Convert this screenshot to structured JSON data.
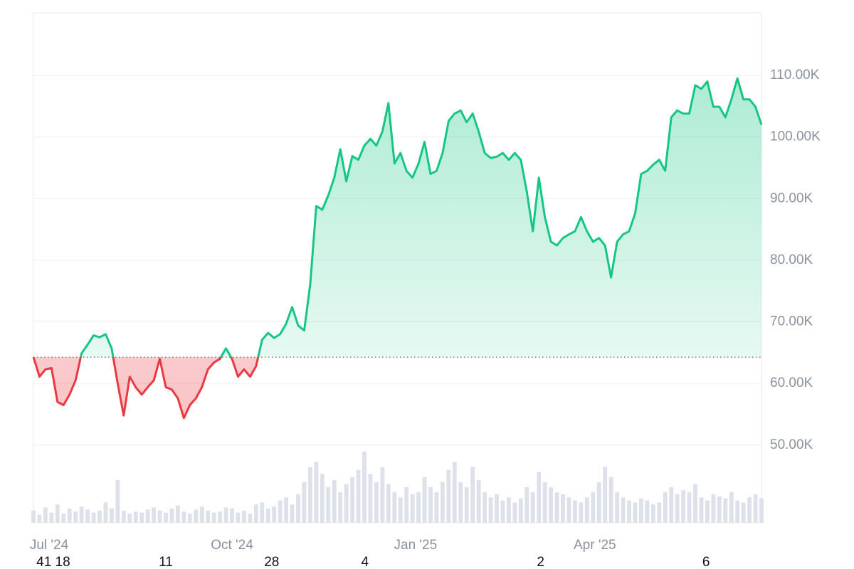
{
  "chart_data": {
    "type": "baseline-area",
    "values": [
      64300,
      61100,
      62300,
      62500,
      57000,
      56500,
      58200,
      60500,
      64900,
      66300,
      67800,
      67500,
      68000,
      65700,
      60000,
      54800,
      61100,
      59400,
      58200,
      59400,
      60500,
      64000,
      59400,
      59000,
      57600,
      54400,
      56500,
      57600,
      59400,
      62300,
      63400,
      64000,
      65700,
      64000,
      61100,
      62300,
      61100,
      62800,
      67100,
      68200,
      67400,
      68000,
      69700,
      72400,
      69400,
      68600,
      76100,
      88800,
      88200,
      90500,
      93400,
      98000,
      92800,
      96900,
      96300,
      98600,
      99700,
      98600,
      100900,
      105500,
      95700,
      97400,
      94500,
      93400,
      95700,
      99200,
      94000,
      94500,
      97400,
      102600,
      103800,
      104300,
      102400,
      103800,
      100900,
      97400,
      96600,
      96800,
      97400,
      96300,
      97400,
      96300,
      91100,
      84700,
      93400,
      87000,
      83000,
      82400,
      83600,
      84200,
      84700,
      87000,
      84700,
      83000,
      83600,
      82400,
      77200,
      83000,
      84200,
      84700,
      87600,
      94000,
      94500,
      95500,
      96300,
      94500,
      103200,
      104300,
      103800,
      103800,
      108400,
      107800,
      109000,
      104900,
      104900,
      103200,
      106100,
      109500,
      106100,
      106100,
      104900,
      102000
    ],
    "volume": [
      12,
      8,
      15,
      10,
      18,
      9,
      14,
      11,
      16,
      13,
      10,
      12,
      20,
      14,
      42,
      12,
      9,
      11,
      10,
      13,
      15,
      12,
      10,
      14,
      17,
      11,
      9,
      13,
      16,
      12,
      10,
      11,
      15,
      14,
      10,
      12,
      9,
      18,
      20,
      14,
      16,
      22,
      25,
      18,
      28,
      40,
      55,
      60,
      48,
      35,
      42,
      30,
      38,
      45,
      52,
      70,
      48,
      40,
      55,
      38,
      30,
      25,
      35,
      28,
      30,
      45,
      35,
      30,
      40,
      52,
      60,
      40,
      35,
      55,
      42,
      30,
      25,
      28,
      22,
      25,
      20,
      24,
      35,
      30,
      50,
      40,
      35,
      30,
      28,
      25,
      22,
      20,
      25,
      30,
      40,
      55,
      45,
      30,
      25,
      22,
      20,
      24,
      22,
      18,
      20,
      30,
      35,
      28,
      32,
      30,
      38,
      25,
      22,
      28,
      26,
      24,
      30,
      22,
      20,
      25,
      28,
      24
    ],
    "baseline": 64270,
    "color_above": "#16c784",
    "color_below": "#ea3943",
    "volume_color": "#dde2ea",
    "xlim": [
      0,
      121
    ],
    "ylim": [
      37400,
      120150
    ],
    "yticks": [
      {
        "value": 50000,
        "label": "50.00K"
      },
      {
        "value": 60000,
        "label": "60.00K"
      },
      {
        "value": 70000,
        "label": "70.00K"
      },
      {
        "value": 80000,
        "label": "80.00K"
      },
      {
        "value": 90000,
        "label": "90.00K"
      },
      {
        "value": 100000,
        "label": "100.00K"
      },
      {
        "value": 110000,
        "label": "110.00K"
      }
    ],
    "xticks": [
      {
        "value": 2.6,
        "label": "Jul '24"
      },
      {
        "value": 33,
        "label": "Oct '24"
      },
      {
        "value": 63.5,
        "label": "Jan '25"
      },
      {
        "value": 93.3,
        "label": "Apr '25"
      }
    ],
    "xticks_minor": [
      {
        "value": 3.3,
        "label": "41 18"
      },
      {
        "value": 22,
        "label": "11"
      },
      {
        "value": 39.6,
        "label": "28"
      },
      {
        "value": 55.1,
        "label": "4"
      },
      {
        "value": 84.3,
        "label": "2"
      },
      {
        "value": 111.8,
        "label": "6"
      }
    ],
    "grid": true
  }
}
